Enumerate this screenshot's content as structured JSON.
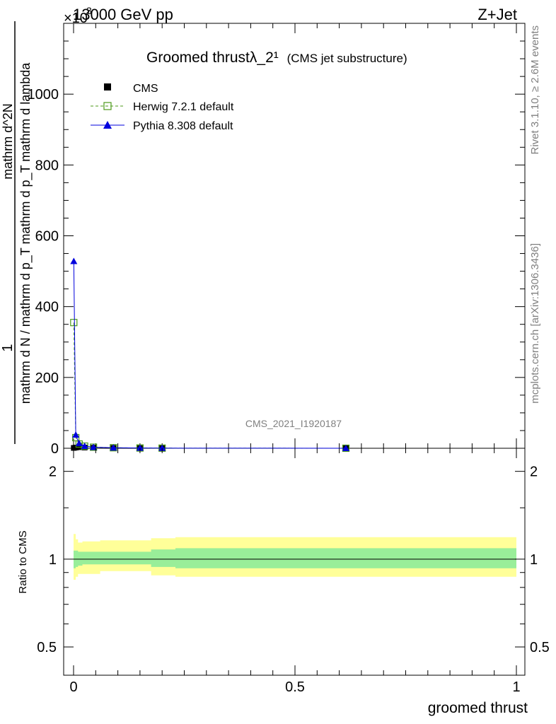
{
  "header": {
    "left": "13000 GeV pp",
    "right": "Z+Jet",
    "exponent": "×10^3"
  },
  "side_labels": {
    "rivet": "Rivet 3.1.10, ≥ 2.6M events",
    "mcplots": "mcplots.cern.ch [arXiv:1306.3436]"
  },
  "chart_data": [
    {
      "type": "line",
      "title": "Groomed thrustλ_2¹",
      "subtitle": "(CMS jet substructure)",
      "watermark": "CMS_2021_I1920187",
      "ylabel_numerator": "1",
      "ylabel_denominator": "mathrm d N / mathrm d p_T mathrm d p_T mathrm d lambda",
      "ylabel_right": "mathrm d^2N",
      "ylabel_composite": "1 / (mathrm d N / mathrm d p_T) · mathrm d^2N / (mathrm d p_T mathrm d lambda)",
      "xlim": [
        0,
        1
      ],
      "ylim": [
        0,
        1200
      ],
      "y_scale_note": "×10^3",
      "x_ticks": [
        "0",
        "0.5",
        "1"
      ],
      "y_ticks": [
        "0",
        "200",
        "400",
        "600",
        "800",
        "1000"
      ],
      "legend_position": "top-left",
      "grid": false,
      "series": [
        {
          "name": "CMS",
          "marker": "square",
          "color": "#000000",
          "x": [
            0.0005,
            0.005,
            0.0125,
            0.025,
            0.045,
            0.09,
            0.15,
            0.2,
            0.615
          ],
          "y": [
            1,
            2,
            3,
            2,
            1.5,
            0.8,
            0.4,
            0.2,
            0.05
          ]
        },
        {
          "name": "Herwig 7.2.1 default",
          "marker": "open-square",
          "line": "dashed",
          "color": "#4c9a1a",
          "x": [
            0.0005,
            0.005,
            0.0125,
            0.025,
            0.045,
            0.09,
            0.15,
            0.2,
            0.615
          ],
          "y": [
            355,
            30,
            12,
            6,
            3,
            1.5,
            0.8,
            0.4,
            0.05
          ]
        },
        {
          "name": "Pythia 8.308 default",
          "marker": "triangle",
          "line": "solid",
          "color": "#0000dd",
          "x": [
            0.0005,
            0.005,
            0.0125,
            0.025,
            0.045,
            0.09,
            0.15,
            0.2,
            0.615
          ],
          "y": [
            528,
            38,
            14,
            6,
            3,
            1.5,
            0.8,
            0.4,
            0.05
          ]
        }
      ]
    },
    {
      "type": "area",
      "ylabel": "Ratio to CMS",
      "xlabel": "groomed thrust",
      "xlim": [
        0,
        1
      ],
      "ylim": [
        0.4,
        2.4
      ],
      "y_scale": "log",
      "x_ticks": [
        "0",
        "0.5",
        "1"
      ],
      "y_ticks": [
        "0.5",
        "1",
        "2"
      ],
      "band_edges": [
        0,
        0.005,
        0.01,
        0.02,
        0.06,
        0.175,
        0.23,
        1.0
      ],
      "total_uncertainty_band": {
        "color": "#ffff99",
        "lo": [
          0.85,
          0.87,
          0.89,
          0.89,
          0.91,
          0.88,
          0.87
        ],
        "hi": [
          1.22,
          1.17,
          1.14,
          1.15,
          1.16,
          1.18,
          1.19
        ]
      },
      "stat_uncertainty_band": {
        "color": "#99ee99",
        "lo": [
          0.93,
          0.94,
          0.95,
          0.96,
          0.96,
          0.94,
          0.93
        ],
        "hi": [
          1.07,
          1.07,
          1.06,
          1.06,
          1.06,
          1.08,
          1.09
        ]
      },
      "reference_line": 1
    }
  ]
}
